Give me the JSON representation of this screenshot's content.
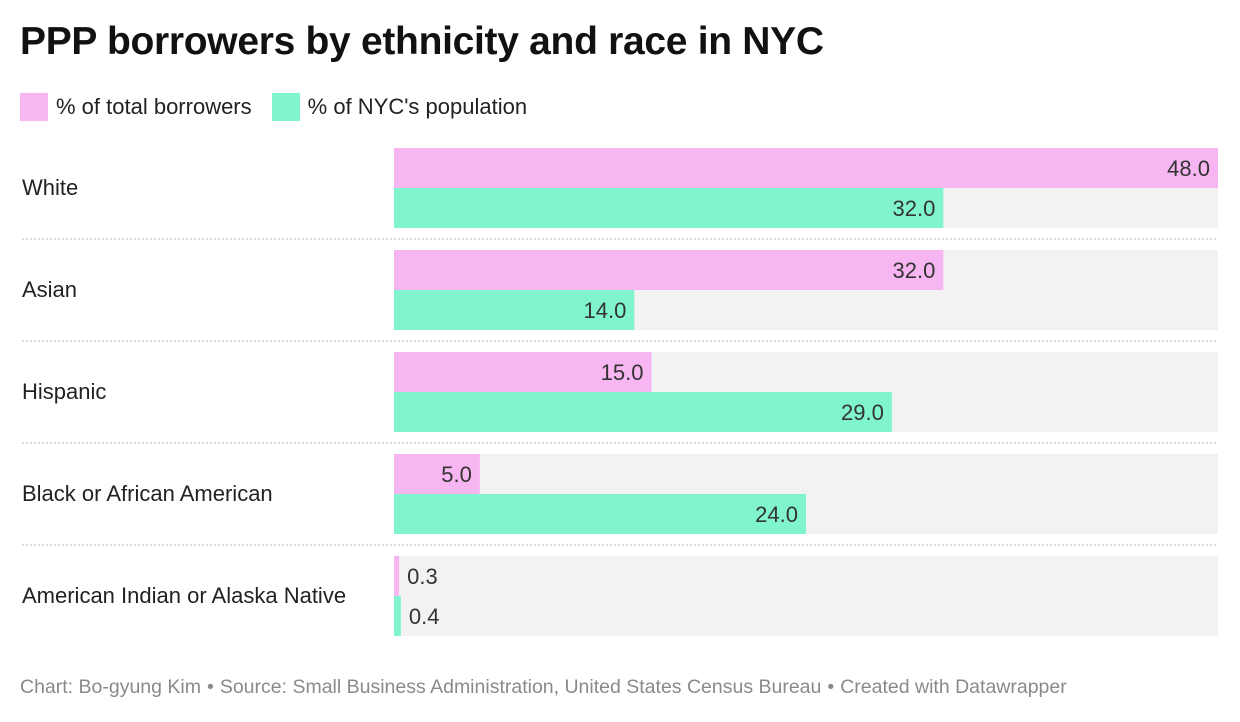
{
  "title": "PPP borrowers by ethnicity and race in NYC",
  "legend": [
    {
      "label": "% of total borrowers",
      "color": "#f7b6f2"
    },
    {
      "label": "% of NYC's population",
      "color": "#80f4cf"
    }
  ],
  "footer": {
    "chart": "Chart: Bo-gyung Kim",
    "source": "Source: Small Business Administration, United States Census Bureau",
    "created": "Created with Datawrapper"
  },
  "chart_data": {
    "type": "bar",
    "orientation": "horizontal",
    "categories": [
      "White",
      "Asian",
      "Hispanic",
      "Black or African American",
      "American Indian or Alaska Native"
    ],
    "series": [
      {
        "name": "% of total borrowers",
        "color": "#f7b6f2",
        "values": [
          48.0,
          32.0,
          15.0,
          5.0,
          0.3
        ],
        "labels": [
          "48.0",
          "32.0",
          "15.0",
          "5.0",
          "0.3"
        ]
      },
      {
        "name": "% of NYC's population",
        "color": "#80f4cf",
        "values": [
          32.0,
          14.0,
          29.0,
          24.0,
          0.4
        ],
        "labels": [
          "32.0",
          "14.0",
          "29.0",
          "24.0",
          "0.4"
        ]
      }
    ],
    "xlim": [
      0,
      48
    ],
    "background_track_color": "#f2f2f2",
    "grid": false,
    "legend_position": "top-left"
  }
}
